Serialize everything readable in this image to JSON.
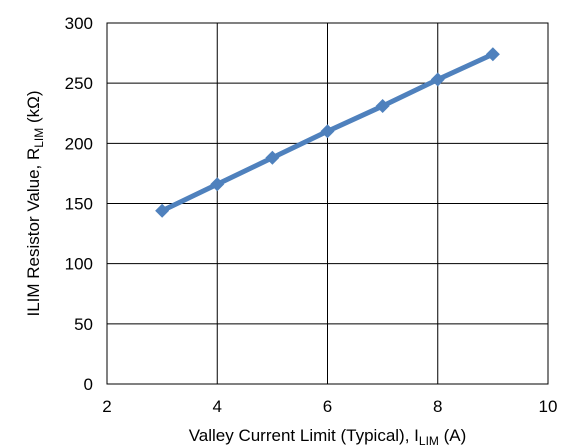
{
  "chart_data": {
    "type": "line",
    "title": "",
    "xlabel": {
      "main": "Valley Current Limit (Typical), I",
      "sub": "LIM",
      "unit": " (A)"
    },
    "ylabel": {
      "main": "ILIM Resistor Value, R",
      "sub": "LIM",
      "unit": " (kΩ)"
    },
    "xlim": [
      2,
      10
    ],
    "ylim": [
      0,
      300
    ],
    "x_ticks": [
      2,
      4,
      6,
      8,
      10
    ],
    "y_ticks": [
      0,
      50,
      100,
      150,
      200,
      250,
      300
    ],
    "grid": true,
    "legend": "none",
    "series": [
      {
        "x": [
          3,
          4,
          5,
          6,
          7,
          8,
          9
        ],
        "values": [
          144,
          166,
          188,
          210,
          231,
          253,
          274
        ],
        "color": "#4f81bd",
        "marker": "diamond"
      }
    ]
  }
}
